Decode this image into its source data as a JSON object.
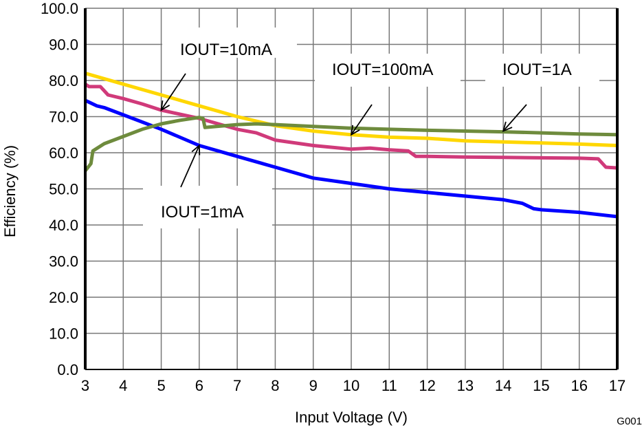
{
  "chart_data": {
    "type": "line",
    "title": "",
    "xlabel": "Input Voltage (V)",
    "ylabel": "Efficiency (%)",
    "xlim": [
      3,
      17
    ],
    "ylim": [
      0,
      100
    ],
    "grid": true,
    "legend": "none",
    "figure_id": "G001",
    "xticks": [
      "3",
      "4",
      "5",
      "6",
      "7",
      "8",
      "9",
      "10",
      "11",
      "12",
      "13",
      "14",
      "15",
      "16",
      "17"
    ],
    "yticks": [
      "0.0",
      "10.0",
      "20.0",
      "30.0",
      "40.0",
      "50.0",
      "60.0",
      "70.0",
      "80.0",
      "90.0",
      "100.0"
    ],
    "series": [
      {
        "name": "IOUT=1mA",
        "color": "#0000FF",
        "x": [
          3,
          3.3,
          3.5,
          4,
          5,
          6,
          7,
          8,
          9,
          10,
          11,
          12,
          13,
          14,
          14.5,
          14.8,
          15,
          16,
          17
        ],
        "y": [
          74.5,
          73,
          72.5,
          70.5,
          66.5,
          62,
          59,
          56,
          53,
          51.5,
          50,
          49,
          48,
          47,
          46,
          44.5,
          44.2,
          43.5,
          42.3
        ]
      },
      {
        "name": "IOUT=10mA",
        "color": "#D03A7A",
        "x": [
          3,
          3.1,
          3.4,
          3.6,
          4,
          4.5,
          5,
          6,
          6.5,
          7,
          7.5,
          8,
          9,
          10,
          10.5,
          11,
          11.5,
          11.7,
          12,
          13,
          14,
          15,
          16,
          16.5,
          16.7,
          17
        ],
        "y": [
          79,
          78.3,
          78.3,
          76,
          75,
          73.5,
          71.8,
          69.5,
          68,
          66.5,
          65.5,
          63.5,
          62,
          61,
          61.3,
          60.8,
          60.5,
          59,
          59,
          58.8,
          58.7,
          58.6,
          58.5,
          58.3,
          56,
          55.8
        ]
      },
      {
        "name": "IOUT=100mA",
        "color": "#FFD700",
        "x": [
          3,
          3.5,
          4,
          5,
          6,
          7,
          8,
          9,
          10,
          11,
          12,
          13,
          14,
          15,
          16,
          17
        ],
        "y": [
          82,
          80.5,
          79,
          76,
          73,
          70,
          67.5,
          66,
          65,
          64.3,
          64,
          63.3,
          63,
          62.7,
          62.4,
          62
        ]
      },
      {
        "name": "IOUT=1A",
        "color": "#6E8B3D",
        "x": [
          3,
          3.15,
          3.2,
          3.5,
          4,
          4.5,
          5,
          5.5,
          6,
          6.1,
          6.15,
          7,
          7.5,
          8,
          9,
          10,
          11,
          12,
          13,
          14,
          15,
          16,
          17
        ],
        "y": [
          55,
          57,
          60.5,
          62.5,
          64.5,
          66.5,
          68,
          69,
          69.8,
          69.5,
          67,
          67.8,
          68,
          67.8,
          67.3,
          66.8,
          66.5,
          66.2,
          66,
          65.8,
          65.5,
          65.2,
          65
        ]
      }
    ],
    "annotations": [
      {
        "text": "IOUT=10mA",
        "series": "IOUT=10mA",
        "x": 5,
        "y": 71.8
      },
      {
        "text": "IOUT=100mA",
        "series": "IOUT=100mA",
        "x": 10,
        "y": 65
      },
      {
        "text": "IOUT=1A",
        "series": "IOUT=1A",
        "x": 14,
        "y": 66
      },
      {
        "text": "IOUT=1mA",
        "series": "IOUT=1mA",
        "x": 6,
        "y": 62
      }
    ]
  }
}
